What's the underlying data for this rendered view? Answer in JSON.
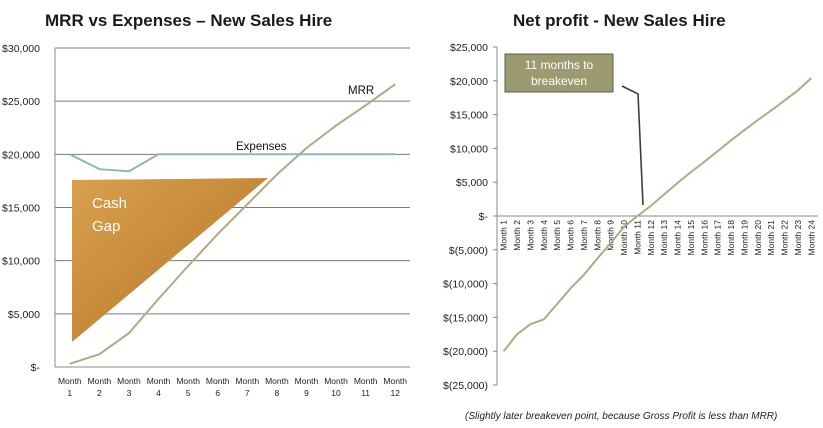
{
  "chart_data": [
    {
      "type": "line",
      "title": "MRR vs Expenses – New Sales Hire",
      "categories": [
        "Month 1",
        "Month 2",
        "Month 3",
        "Month 4",
        "Month 5",
        "Month 6",
        "Month 7",
        "Month 8",
        "Month 9",
        "Month 10",
        "Month 11",
        "Month 12"
      ],
      "category_lines": [
        [
          "Month",
          "1"
        ],
        [
          "Month",
          "2"
        ],
        [
          "Month",
          "3"
        ],
        [
          "Month",
          "4"
        ],
        [
          "Month",
          "5"
        ],
        [
          "Month",
          "6"
        ],
        [
          "Month",
          "7"
        ],
        [
          "Month",
          "8"
        ],
        [
          "Month",
          "9"
        ],
        [
          "Month",
          "10"
        ],
        [
          "Month",
          "11"
        ],
        [
          "Month",
          "12"
        ]
      ],
      "series": [
        {
          "name": "MRR",
          "color": "#b3a981",
          "values": [
            300,
            1200,
            3200,
            6400,
            9500,
            12500,
            15300,
            18100,
            20600,
            22700,
            24600,
            26600
          ]
        },
        {
          "name": "Expenses",
          "color": "#8fb8bd",
          "values": [
            20000,
            18600,
            18400,
            20000,
            20000,
            20000,
            20000,
            20000,
            20000,
            20000,
            20000,
            20000
          ]
        }
      ],
      "ylim": [
        0,
        30000
      ],
      "yticks": [
        0,
        5000,
        10000,
        15000,
        20000,
        25000,
        30000
      ],
      "ytick_labels": [
        "$-",
        "$5,000",
        "$10,000",
        "$15,000",
        "$20,000",
        "$25,000",
        "$30,000"
      ],
      "grid": true,
      "annotations": {
        "mrr": "MRR",
        "expenses": "Expenses",
        "cash_gap_line1": "Cash",
        "cash_gap_line2": "Gap"
      }
    },
    {
      "type": "line",
      "title": "Net profit - New Sales Hire",
      "categories": [
        "Month 1",
        "Month 2",
        "Month 3",
        "Month 4",
        "Month 5",
        "Month 6",
        "Month 7",
        "Month 8",
        "Month 9",
        "Month 10",
        "Month 11",
        "Month 12",
        "Month 13",
        "Month 14",
        "Month 15",
        "Month 16",
        "Month 17",
        "Month 18",
        "Month 19",
        "Month 20",
        "Month 21",
        "Month 22",
        "Month 23",
        "Month 24"
      ],
      "series": [
        {
          "name": "Net profit",
          "color": "#b3a981",
          "values": [
            -20000,
            -17500,
            -16000,
            -15300,
            -13000,
            -10700,
            -8700,
            -6300,
            -4000,
            -1600,
            0,
            1500,
            3200,
            4900,
            6500,
            8000,
            9600,
            11200,
            12700,
            14200,
            15600,
            17100,
            18600,
            20400
          ]
        }
      ],
      "ylim": [
        -25000,
        25000
      ],
      "yticks": [
        -25000,
        -20000,
        -15000,
        -10000,
        -5000,
        0,
        5000,
        10000,
        15000,
        20000,
        25000
      ],
      "ytick_labels": [
        "$(25,000)",
        "$(20,000)",
        "$(15,000)",
        "$(10,000)",
        "$(5,000)",
        "$-",
        "$5,000",
        "$10,000",
        "$15,000",
        "$20,000",
        "$25,000"
      ],
      "grid": false,
      "callout_line1": "11 months to",
      "callout_line2": "breakeven",
      "footnote": "(Slightly later breakeven point, because Gross Profit is less than MRR)"
    }
  ]
}
